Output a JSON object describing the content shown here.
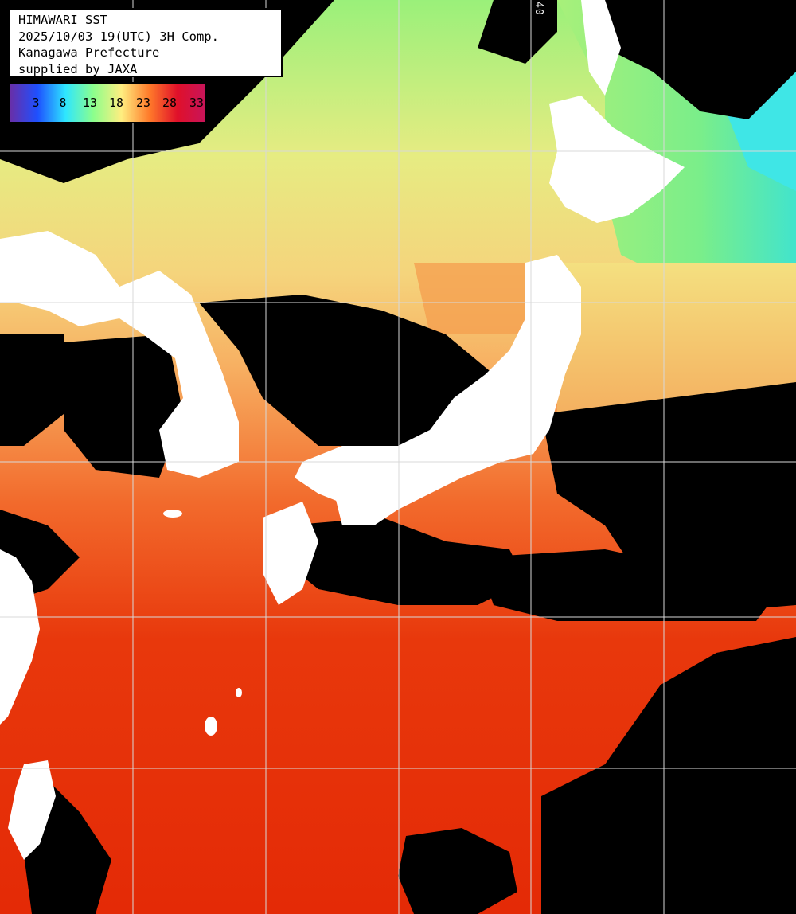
{
  "header": {
    "line1": "HIMAWARI SST",
    "line2": "2025/10/03 19(UTC) 3H Comp.",
    "line3": "Kanagawa Prefecture",
    "line4": "supplied by JAXA"
  },
  "color_scale": {
    "labels": [
      "3",
      "8",
      "13",
      "18",
      "23",
      "28",
      "33"
    ],
    "stops": [
      "#6a2ea6",
      "#1e50ff",
      "#2ee6ff",
      "#8cff8c",
      "#ffee80",
      "#ff7a2a",
      "#e0102a",
      "#c8145a"
    ]
  },
  "grid_label": "40",
  "colors": {
    "land": "#ffffff",
    "cloud": "#000000",
    "grid": "#d8d8d8",
    "sst_cold": "#3fe6e6",
    "sst_cool": "#8cf27a",
    "sst_mild": "#f2e486",
    "sst_warm": "#f5a550",
    "sst_hot": "#e8300a"
  }
}
